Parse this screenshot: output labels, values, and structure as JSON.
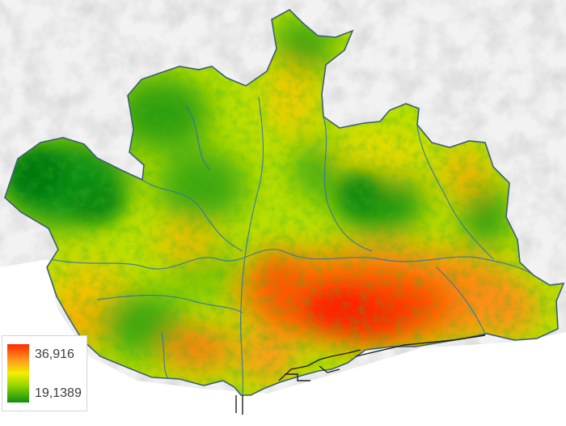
{
  "legend": {
    "high_label": "36,916",
    "low_label": "19,1389",
    "high_value": 36.916,
    "low_value": 19.1389,
    "colors": {
      "high": "#ff2a00",
      "upper_mid": "#ff9b1e",
      "mid": "#f2ee00",
      "lower_mid": "#8ed400",
      "low": "#0b8f10"
    }
  },
  "map_colors": {
    "hillshade_light": "#f4f4f4",
    "hillshade_dark": "#d8d8d8",
    "sea": "#ffffff",
    "boundary": "#3a5e75",
    "district_lines": "#2c74a8"
  }
}
